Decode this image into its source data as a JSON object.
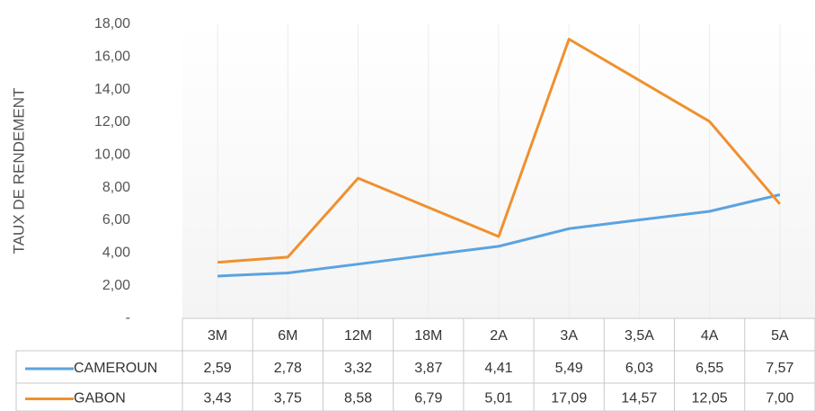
{
  "chart_data": {
    "type": "line",
    "y_axis_label": "TAUX DE RENDEMENT",
    "categories": [
      "3M",
      "6M",
      "12M",
      "18M",
      "2A",
      "3A",
      "3,5A",
      "4A",
      "5A"
    ],
    "series": [
      {
        "name": "CAMEROUN",
        "color": "#5ba3e0",
        "values": [
          2.59,
          2.78,
          3.32,
          3.87,
          4.41,
          5.49,
          6.03,
          6.55,
          7.57
        ],
        "value_labels": [
          "2,59",
          "2,78",
          "3,32",
          "3,87",
          "4,41",
          "5,49",
          "6,03",
          "6,55",
          "7,57"
        ]
      },
      {
        "name": "GABON",
        "color": "#f0902f",
        "values": [
          3.43,
          3.75,
          8.58,
          6.79,
          5.01,
          17.09,
          14.57,
          12.05,
          7.0
        ],
        "value_labels": [
          "3,43",
          "3,75",
          "8,58",
          "6,79",
          "5,01",
          "17,09",
          "14,57",
          "12,05",
          "7,00"
        ]
      }
    ],
    "ylim": [
      0,
      18
    ],
    "yticks": [
      {
        "value": 0,
        "label": "-"
      },
      {
        "value": 2,
        "label": "2,00"
      },
      {
        "value": 4,
        "label": "4,00"
      },
      {
        "value": 6,
        "label": "6,00"
      },
      {
        "value": 8,
        "label": "8,00"
      },
      {
        "value": 10,
        "label": "10,00"
      },
      {
        "value": 12,
        "label": "12,00"
      },
      {
        "value": 14,
        "label": "14,00"
      },
      {
        "value": 16,
        "label": "16,00"
      },
      {
        "value": 18,
        "label": "18,00"
      }
    ],
    "grid": false
  }
}
